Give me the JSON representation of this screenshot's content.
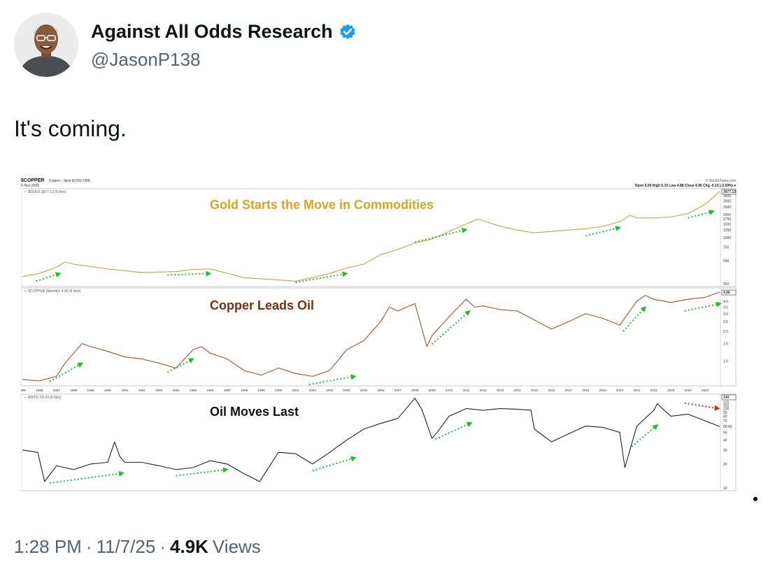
{
  "author": {
    "display_name": "Against All Odds Research",
    "handle": "@JasonP138",
    "verified_icon": "verified-badge-icon",
    "avatar_icon": "profile-photo-icon"
  },
  "tweet": {
    "text": "It's coming."
  },
  "meta": {
    "time": "1:28 PM",
    "sep1": "·",
    "date": "11/7/25",
    "sep2": "·",
    "views_count": "4.9K",
    "views_label": "Views"
  },
  "colors": {
    "gold": "#c9a14a",
    "gold_title": "#d9a521",
    "copper": "#a0522d",
    "copper_title": "#7a2e14",
    "oil": "#222222",
    "green_arrow": "#22bb33",
    "red_arrow": "#dd2222",
    "verified": "#1d9bf0"
  },
  "chart_header": {
    "symbol": "$COPPER",
    "desc": "Copper - Spot (EOD) CME",
    "date": "6-Nov-2025",
    "source": "© StockCharts.com",
    "ohlc": "Open 5.09  High 5.10  Low 4.88  Close 4.96  Chg -0.13 (-2.59%) ▾"
  },
  "chart_data": [
    {
      "type": "line",
      "panel": "gold",
      "legend": "$GOLD 3977.13 (6 Nov)",
      "title": "Gold Starts the Move in Commodities",
      "scale": "log",
      "ylim": [
        250,
        3977
      ],
      "yticks": [
        "3977.13",
        "3500",
        "3000",
        "2500",
        "2000",
        "1750",
        "1500",
        "1250",
        "1000",
        "750",
        "500",
        "250"
      ],
      "x": [
        1985,
        1986,
        1987,
        1987.5,
        1988,
        1990,
        1992,
        1994,
        1995,
        1996,
        1998,
        1999,
        2000,
        2001,
        2002,
        2003,
        2004,
        2005,
        2006,
        2007,
        2008,
        2009,
        2010,
        2011,
        2011.7,
        2012,
        2013,
        2014,
        2015,
        2016,
        2017,
        2018,
        2019,
        2020,
        2020.6,
        2021,
        2022,
        2023,
        2024,
        2025,
        2025.85
      ],
      "values": [
        310,
        340,
        410,
        480,
        450,
        390,
        350,
        360,
        385,
        390,
        300,
        290,
        280,
        270,
        300,
        340,
        400,
        450,
        600,
        700,
        850,
        950,
        1200,
        1500,
        1750,
        1650,
        1400,
        1250,
        1150,
        1200,
        1250,
        1300,
        1400,
        1600,
        1950,
        1800,
        1800,
        1850,
        2050,
        2700,
        3977
      ],
      "arrows": [
        {
          "color": "green",
          "from": [
            1985.8,
            270
          ],
          "to": [
            1987.2,
            340
          ]
        },
        {
          "color": "green",
          "from": [
            1993.5,
            325
          ],
          "to": [
            1996,
            340
          ]
        },
        {
          "color": "green",
          "from": [
            2001,
            260
          ],
          "to": [
            2004,
            340
          ]
        },
        {
          "color": "green",
          "from": [
            2008,
            870
          ],
          "to": [
            2011,
            1270
          ]
        },
        {
          "color": "green",
          "from": [
            2018,
            1050
          ],
          "to": [
            2020,
            1350
          ]
        },
        {
          "color": "green",
          "from": [
            2024,
            1800
          ],
          "to": [
            2025.5,
            2200
          ]
        }
      ]
    },
    {
      "type": "line",
      "panel": "copper",
      "legend": "$COPPER (Monthly) 4.96 (6 Nov)",
      "title": "Copper Leads Oil",
      "scale": "log",
      "ylim": [
        0.6,
        4.96
      ],
      "yticks": [
        "4.96",
        "4.0",
        "3.5",
        "3.0",
        "2.5",
        "2.0",
        "1.5",
        "1.0"
      ],
      "x": [
        1985,
        1986,
        1987,
        1987.5,
        1988,
        1988.5,
        1989,
        1990,
        1991,
        1992,
        1993,
        1994,
        1995,
        1995.5,
        1996,
        1997,
        1998,
        1999,
        2000,
        2001,
        2002,
        2003,
        2004,
        2005,
        2006,
        2006.5,
        2007,
        2008,
        2008.7,
        2009,
        2010,
        2011,
        2011.5,
        2012,
        2013,
        2014,
        2015,
        2016,
        2017,
        2018,
        2019,
        2020,
        2021,
        2021.5,
        2022,
        2023,
        2024,
        2025,
        2025.85
      ],
      "values": [
        0.65,
        0.63,
        0.7,
        0.95,
        1.2,
        1.5,
        1.4,
        1.25,
        1.1,
        1.05,
        0.95,
        0.85,
        1.3,
        1.4,
        1.2,
        1.05,
        0.8,
        0.72,
        0.85,
        0.75,
        0.7,
        0.8,
        1.3,
        1.6,
        2.5,
        3.5,
        3.2,
        3.8,
        1.4,
        1.8,
        2.8,
        4.2,
        3.5,
        3.6,
        3.3,
        3.2,
        2.6,
        2.1,
        2.5,
        3.0,
        2.7,
        2.3,
        4.0,
        4.6,
        4.2,
        3.9,
        4.2,
        4.4,
        4.96
      ],
      "arrows": [
        {
          "color": "green",
          "from": [
            1986.6,
            0.62
          ],
          "to": [
            1988.5,
            0.95
          ]
        },
        {
          "color": "green",
          "from": [
            1993.5,
            0.77
          ],
          "to": [
            1995,
            1.05
          ]
        },
        {
          "color": "green",
          "from": [
            2001.8,
            0.58
          ],
          "to": [
            2004.5,
            0.7
          ]
        },
        {
          "color": "green",
          "from": [
            2009,
            1.48
          ],
          "to": [
            2011.2,
            3.2
          ]
        },
        {
          "color": "green",
          "from": [
            2020.2,
            2.0
          ],
          "to": [
            2021.5,
            3.5
          ]
        },
        {
          "color": "green",
          "from": [
            2023.8,
            3.2
          ],
          "to": [
            2025.9,
            3.8
          ]
        }
      ]
    },
    {
      "type": "line",
      "panel": "oil",
      "legend": "$WTIC 59.43 (6 Nov)",
      "title": "Oil Moves Last",
      "scale": "log",
      "ylim": [
        10,
        140
      ],
      "yticks": [
        "140",
        "120",
        "110",
        "100",
        "90",
        "80",
        "70",
        "59.43",
        "50",
        "40",
        "30",
        "20",
        "10"
      ],
      "x": [
        1985,
        1985.9,
        1986.3,
        1987,
        1988,
        1989,
        1990,
        1990.4,
        1990.7,
        1991,
        1992,
        1993,
        1994,
        1995,
        1996,
        1997,
        1998,
        1998.9,
        2000,
        2001,
        2002,
        2003,
        2004,
        2005,
        2006,
        2007,
        2008,
        2008.4,
        2009,
        2009.3,
        2010,
        2011,
        2012,
        2013,
        2014,
        2014.8,
        2015,
        2016,
        2017,
        2018,
        2019,
        2020,
        2020.3,
        2021,
        2022,
        2022.2,
        2023,
        2024,
        2025,
        2025.85
      ],
      "values": [
        30,
        28,
        12,
        19,
        17,
        20,
        21,
        38,
        25,
        21,
        21,
        19,
        17,
        18,
        22,
        20,
        15,
        12,
        28,
        27,
        20,
        28,
        40,
        55,
        65,
        75,
        135,
        98,
        42,
        50,
        80,
        100,
        95,
        100,
        98,
        95,
        55,
        38,
        48,
        60,
        58,
        50,
        18,
        60,
        95,
        115,
        80,
        85,
        70,
        59.43
      ],
      "arrows": [
        {
          "color": "green",
          "from": [
            1986.6,
            11.5
          ],
          "to": [
            1990.9,
            15.3
          ]
        },
        {
          "color": "green",
          "from": [
            1994,
            14.2
          ],
          "to": [
            1997,
            17
          ]
        },
        {
          "color": "green",
          "from": [
            2002,
            16.5
          ],
          "to": [
            2004.5,
            24
          ]
        },
        {
          "color": "green",
          "from": [
            2009.2,
            41
          ],
          "to": [
            2011.3,
            66
          ]
        },
        {
          "color": "green",
          "from": [
            2020.7,
            33
          ],
          "to": [
            2022.2,
            62
          ]
        },
        {
          "color": "red",
          "from": [
            2023.8,
            117
          ],
          "to": [
            2025.8,
            100
          ]
        }
      ]
    }
  ],
  "x_axis_labels": [
    "1985",
    "1986",
    "1987",
    "1988",
    "1989",
    "1990",
    "1991",
    "1992",
    "1993",
    "1994",
    "1995",
    "1996",
    "1997",
    "1998",
    "1999",
    "2000",
    "2001",
    "2002",
    "2003",
    "2004",
    "2005",
    "2006",
    "2007",
    "2008",
    "2009",
    "2010",
    "2011",
    "2012",
    "2013",
    "2014",
    "2015",
    "2016",
    "2017",
    "2018",
    "2019",
    "2020",
    "2021",
    "2022",
    "2023",
    "2024",
    "2025"
  ]
}
